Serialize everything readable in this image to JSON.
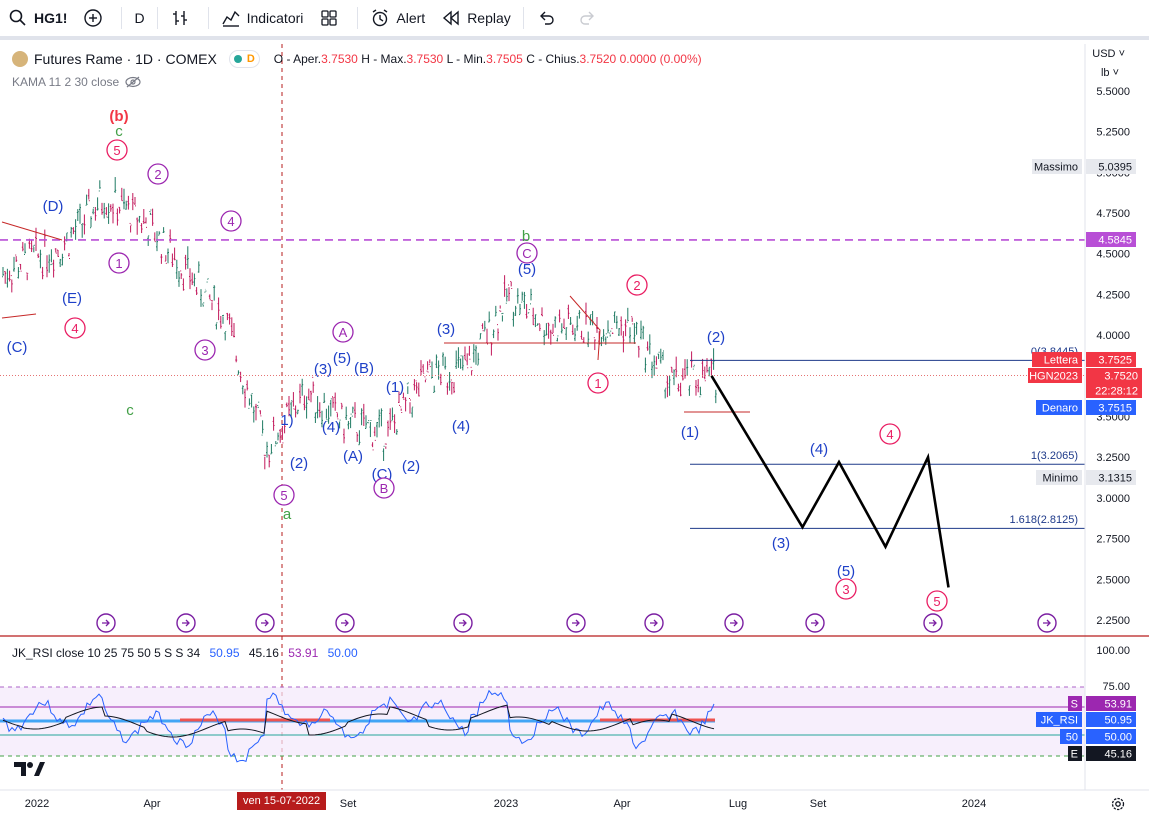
{
  "toolbar": {
    "symbol": "HG1!",
    "interval": "D",
    "indicators_label": "Indicatori",
    "alert_label": "Alert",
    "replay_label": "Replay"
  },
  "legend": {
    "title": "Futures Rame · 1D · COMEX",
    "badge_letter": "D",
    "ohlc": {
      "open_label": "O - Aper.",
      "open": "3.7530",
      "high_label": "H - Max.",
      "high": "3.7530",
      "low_label": "L - Min.",
      "low": "3.7505",
      "close_label": "C - Chius.",
      "close": "3.7520",
      "change": "0.0000 (0.00%)"
    },
    "indicator": "KAMA 11 2 30 close"
  },
  "scale": {
    "currency": "USD",
    "unit": "lb",
    "price_ticks": [
      "5.5000",
      "5.2500",
      "5.0000",
      "4.7500",
      "4.5000",
      "4.2500",
      "4.0000",
      "3.7500",
      "3.5000",
      "3.2500",
      "3.0000",
      "2.7500",
      "2.5000",
      "2.2500"
    ],
    "rsi_ticks": [
      "100.00",
      "75.00"
    ]
  },
  "tags": {
    "massimo_label": "Massimo",
    "massimo": "5.0395",
    "hline": "4.5845",
    "fib0_label": "0(3.8445)",
    "lettera_label": "Lettera",
    "lettera": "3.7525",
    "symbol_tag": "HGN2023",
    "last": "3.7520",
    "countdown": "22:28:12",
    "denaro_label": "Denaro",
    "denaro": "3.7515",
    "fib1_label": "1(3.2065)",
    "minimo_label": "Minimo",
    "minimo": "3.1315",
    "fib1618_label": "1.618(2.8125)"
  },
  "rsi": {
    "legend_name": "JK_RSI close 10 25 75 50 5 S S 34",
    "v1": "50.95",
    "v2": "45.16",
    "v3": "53.91",
    "v4": "50.00",
    "tag_s": "S",
    "tag_s_val": "53.91",
    "tag_jk": "JK_RSI",
    "tag_jk_val": "50.95",
    "tag_50": "50",
    "tag_50_val": "50.00",
    "tag_e": "E",
    "tag_e_val": "45.16"
  },
  "timeline": {
    "labels": [
      "2022",
      "Apr",
      "Set",
      "2023",
      "Apr",
      "Lug",
      "Set",
      "2024"
    ],
    "crosshair_date": "ven 15-07-2022"
  },
  "wave_labels": [
    {
      "t": "(b)",
      "c": "#f23645"
    },
    {
      "t": "c",
      "c": "#43a047"
    },
    {
      "t": "5",
      "c": "#e91e63",
      "circle": true
    },
    {
      "t": "2",
      "c": "#9c27b0",
      "circle": true
    },
    {
      "t": "(D)",
      "c": "#1e40c8"
    },
    {
      "t": "1",
      "c": "#9c27b0",
      "circle": true
    },
    {
      "t": "(E)",
      "c": "#1e40c8"
    },
    {
      "t": "4",
      "c": "#e91e63",
      "circle": true
    },
    {
      "t": "(C)",
      "c": "#1e40c8"
    },
    {
      "t": "c",
      "c": "#43a047"
    },
    {
      "t": "4",
      "c": "#9c27b0",
      "circle": true
    },
    {
      "t": "3",
      "c": "#9c27b0",
      "circle": true
    },
    {
      "t": "1)",
      "c": "#1e40c8"
    },
    {
      "t": "(2)",
      "c": "#1e40c8"
    },
    {
      "t": "5",
      "c": "#9c27b0",
      "circle": true
    },
    {
      "t": "a",
      "c": "#43a047"
    },
    {
      "t": "(3)",
      "c": "#1e40c8"
    },
    {
      "t": "(4)",
      "c": "#1e40c8"
    },
    {
      "t": "(5)",
      "c": "#1e40c8"
    },
    {
      "t": "A",
      "c": "#9c27b0",
      "circle": true
    },
    {
      "t": "(B)",
      "c": "#1e40c8"
    },
    {
      "t": "(A)",
      "c": "#1e40c8"
    },
    {
      "t": "(1)",
      "c": "#1e40c8"
    },
    {
      "t": "(C)",
      "c": "#1e40c8"
    },
    {
      "t": "B",
      "c": "#9c27b0",
      "circle": true
    },
    {
      "t": "(2)",
      "c": "#1e40c8"
    },
    {
      "t": "(3)",
      "c": "#1e40c8"
    },
    {
      "t": "(4)",
      "c": "#1e40c8"
    },
    {
      "t": "b",
      "c": "#43a047"
    },
    {
      "t": "C",
      "c": "#9c27b0",
      "circle": true
    },
    {
      "t": "(5)",
      "c": "#1e40c8"
    },
    {
      "t": "2",
      "c": "#e91e63",
      "circle": true
    },
    {
      "t": "1",
      "c": "#e91e63",
      "circle": true
    },
    {
      "t": "(2)",
      "c": "#1e40c8"
    },
    {
      "t": "(1)",
      "c": "#1e40c8"
    },
    {
      "t": "(4)",
      "c": "#1e40c8"
    },
    {
      "t": "4",
      "c": "#e91e63",
      "circle": true
    },
    {
      "t": "(3)",
      "c": "#1e40c8"
    },
    {
      "t": "(5)",
      "c": "#1e40c8"
    },
    {
      "t": "3",
      "c": "#e91e63",
      "circle": true
    },
    {
      "t": "5",
      "c": "#e91e63",
      "circle": true
    }
  ],
  "chart_data": {
    "type": "line",
    "title": "Futures Rame · 1D · COMEX",
    "ylim": [
      2.2,
      5.55
    ],
    "x": [
      "2021-12",
      "2022-01",
      "2022-02",
      "2022-03",
      "2022-04",
      "2022-05",
      "2022-06",
      "2022-07",
      "2022-08",
      "2022-09",
      "2022-10",
      "2022-11",
      "2022-12",
      "2023-01",
      "2023-02",
      "2023-03",
      "2023-04",
      "2023-05",
      "2023-06"
    ],
    "series": [
      {
        "values": [
          4.3,
          4.45,
          4.55,
          4.85,
          4.7,
          4.4,
          4.1,
          3.3,
          3.65,
          3.45,
          3.4,
          3.75,
          3.8,
          4.25,
          4.05,
          4.05,
          4.05,
          3.7,
          3.75
        ]
      }
    ],
    "projection": {
      "x": [
        "2023-06",
        "2023-08",
        "2023-09",
        "2023-10",
        "2023-11",
        "2023-12"
      ],
      "values": [
        3.75,
        2.82,
        3.22,
        2.7,
        3.25,
        2.45
      ]
    },
    "horizontal_levels": [
      4.5845,
      3.8445,
      3.2065,
      2.8125
    ]
  }
}
